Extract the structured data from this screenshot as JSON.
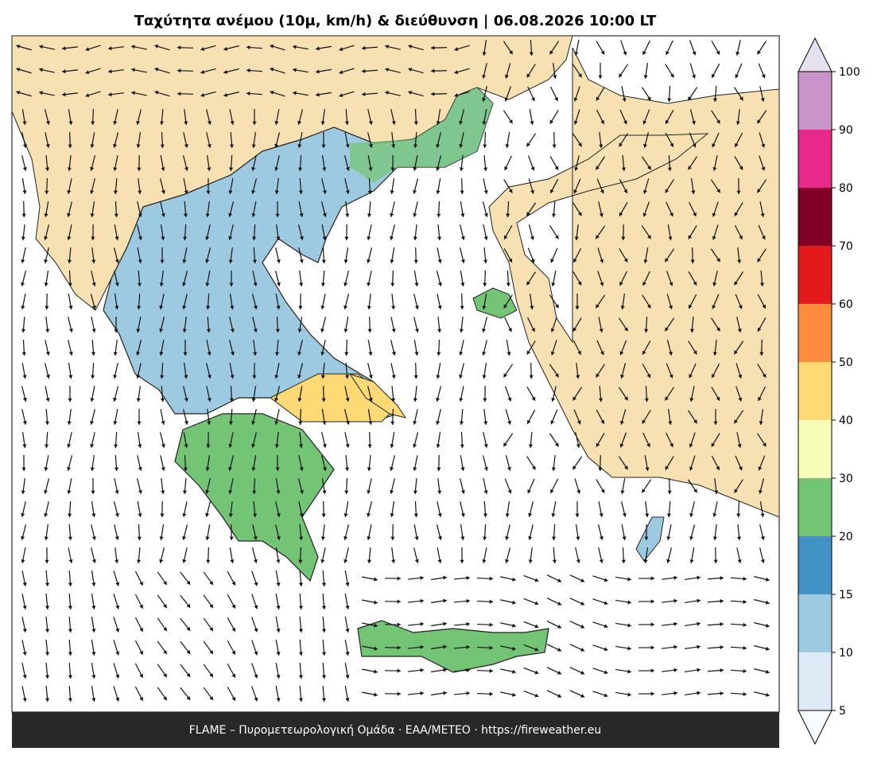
{
  "title": "Ταχύτητα ανέμου (10μ, km/h) & διεύθυνση  |  06.08.2026 10:00 LT",
  "footer": "FLAME – Πυρομετεωρολογική Ομάδα · ΕΑΑ/METEO · https://fireweather.eu",
  "colorbar": {
    "ticks": [
      5,
      10,
      15,
      20,
      30,
      40,
      50,
      60,
      70,
      80,
      90,
      100
    ],
    "colors": [
      "#deebf7",
      "#9ecae1",
      "#4292c6",
      "#74c476",
      "#f7fcb9",
      "#fed976",
      "#fd8d3c",
      "#e31a1c",
      "#800026",
      "#e7298a",
      "#c994c7"
    ],
    "under_color": "#f7fbff",
    "over_color": "#e7e1ef"
  }
}
